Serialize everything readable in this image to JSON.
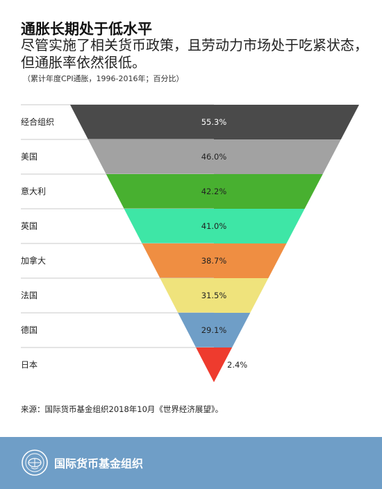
{
  "header": {
    "title": "通胀长期处于低水平",
    "subtitle": "尽管实施了相关货币政策，且劳动力市场处于吃紧状态，但通胀率依然很低。",
    "note": "（累计年度CPI通胀，1996-2016年；百分比）"
  },
  "chart_data": {
    "type": "bar",
    "style": "inverted-funnel",
    "title": "通胀长期处于低水平",
    "categories": [
      "经合组织",
      "美国",
      "意大利",
      "英国",
      "加拿大",
      "法国",
      "德国",
      "日本"
    ],
    "values": [
      55.3,
      46.0,
      42.2,
      41.0,
      38.7,
      31.5,
      29.1,
      2.4
    ],
    "labels": [
      "55.3%",
      "46.0%",
      "42.2%",
      "41.0%",
      "38.7%",
      "31.5%",
      "29.1%",
      "2.4%"
    ],
    "colors": [
      "#4a4a4a",
      "#a2a2a2",
      "#48b030",
      "#3ee6a6",
      "#ef8e42",
      "#efe37c",
      "#6f9ec7",
      "#ee3b2e"
    ],
    "unit": "%",
    "grid": false,
    "legend": "none"
  },
  "source": "来源：国际货币基金组织2018年10月《世界经济展望》。",
  "footer": {
    "org_name": "国际货币基金组织",
    "background": "#6f9ec7",
    "logo_icon": "imf-seal-icon"
  }
}
